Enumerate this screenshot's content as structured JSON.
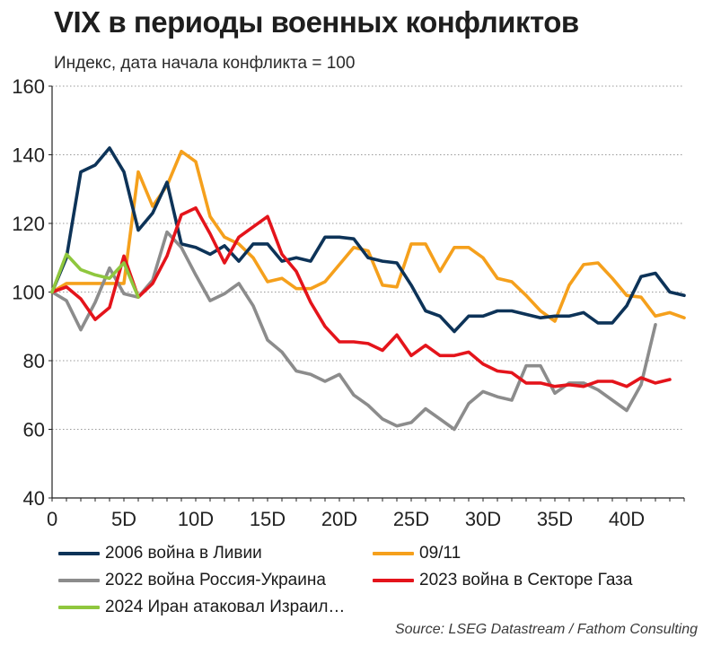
{
  "title": "VIX в периоды военных конфликтов",
  "subtitle": "Индекс, дата начала конфликта = 100",
  "source": "Source: LSEG Datastream / Fathom Consulting",
  "chart_data": {
    "type": "line",
    "ylim": [
      40,
      160
    ],
    "xlim": [
      0,
      44
    ],
    "yticks": [
      40,
      60,
      80,
      100,
      120,
      140,
      160
    ],
    "xticks": [
      0,
      5,
      10,
      15,
      20,
      25,
      30,
      35,
      40
    ],
    "xtick_labels": [
      "0",
      "5D",
      "10D",
      "15D",
      "20D",
      "25D",
      "30D",
      "35D",
      "40D"
    ],
    "grid": "horizontal dotted",
    "legend_position": "bottom",
    "series": [
      {
        "name": "2006 война в Ливии",
        "color": "#0d3358",
        "values": [
          100,
          110,
          135,
          137,
          142,
          135,
          118,
          123,
          132,
          114,
          113,
          111,
          113.5,
          109,
          114,
          114,
          109,
          110,
          109,
          116,
          116,
          115.5,
          110,
          109,
          108.5,
          102,
          94.5,
          93,
          88.5,
          93,
          93,
          94.5,
          94.5,
          93.5,
          92.5,
          93,
          93,
          94,
          91,
          91,
          96,
          104.5,
          105.5,
          100,
          99
        ]
      },
      {
        "name": "09/11",
        "color": "#f5a01c",
        "values": [
          100,
          102.5,
          102.5,
          102.5,
          102.5,
          102.5,
          135,
          125,
          131,
          141,
          138,
          122,
          116,
          114,
          110,
          103,
          104,
          101,
          101,
          103,
          108,
          113,
          112,
          102,
          101.5,
          114,
          114,
          106,
          113,
          113,
          110,
          104,
          103,
          99,
          94.5,
          91.5,
          102,
          108,
          108.5,
          104,
          99,
          98.5,
          93,
          94,
          92.5
        ]
      },
      {
        "name": "2022 война Россия-Украина",
        "color": "#8c8c8c",
        "values": [
          100,
          97.5,
          89,
          97,
          107,
          99.5,
          98.5,
          103.5,
          117.5,
          113,
          105,
          97.5,
          99.5,
          102.5,
          96,
          86,
          82.5,
          77,
          76,
          74,
          76,
          70,
          67,
          63,
          61,
          62,
          66,
          63,
          60,
          67.5,
          71,
          69.5,
          68.5,
          78.5,
          78.5,
          70.5,
          73.5,
          73.5,
          71.5,
          68.5,
          65.5,
          73,
          90.5
        ]
      },
      {
        "name": "2023 война в Секторе Газа",
        "color": "#e4141b",
        "values": [
          100,
          101.5,
          98,
          92,
          95.5,
          110.5,
          98.5,
          102.5,
          110.5,
          122.5,
          124.5,
          117,
          108.5,
          116,
          119,
          122,
          111,
          106,
          97,
          90,
          85.5,
          85.5,
          85,
          83,
          87.5,
          81.5,
          84.5,
          81.5,
          81.5,
          82.5,
          79,
          77,
          76.5,
          73.5,
          73.5,
          72.5,
          73,
          72.5,
          74,
          74,
          72.5,
          75,
          73.5,
          74.5
        ]
      },
      {
        "name": "2024 Иран атаковал Израил…",
        "color": "#8fc73e",
        "values": [
          100,
          111,
          106.5,
          105,
          104,
          108.5,
          98.5
        ]
      }
    ]
  }
}
